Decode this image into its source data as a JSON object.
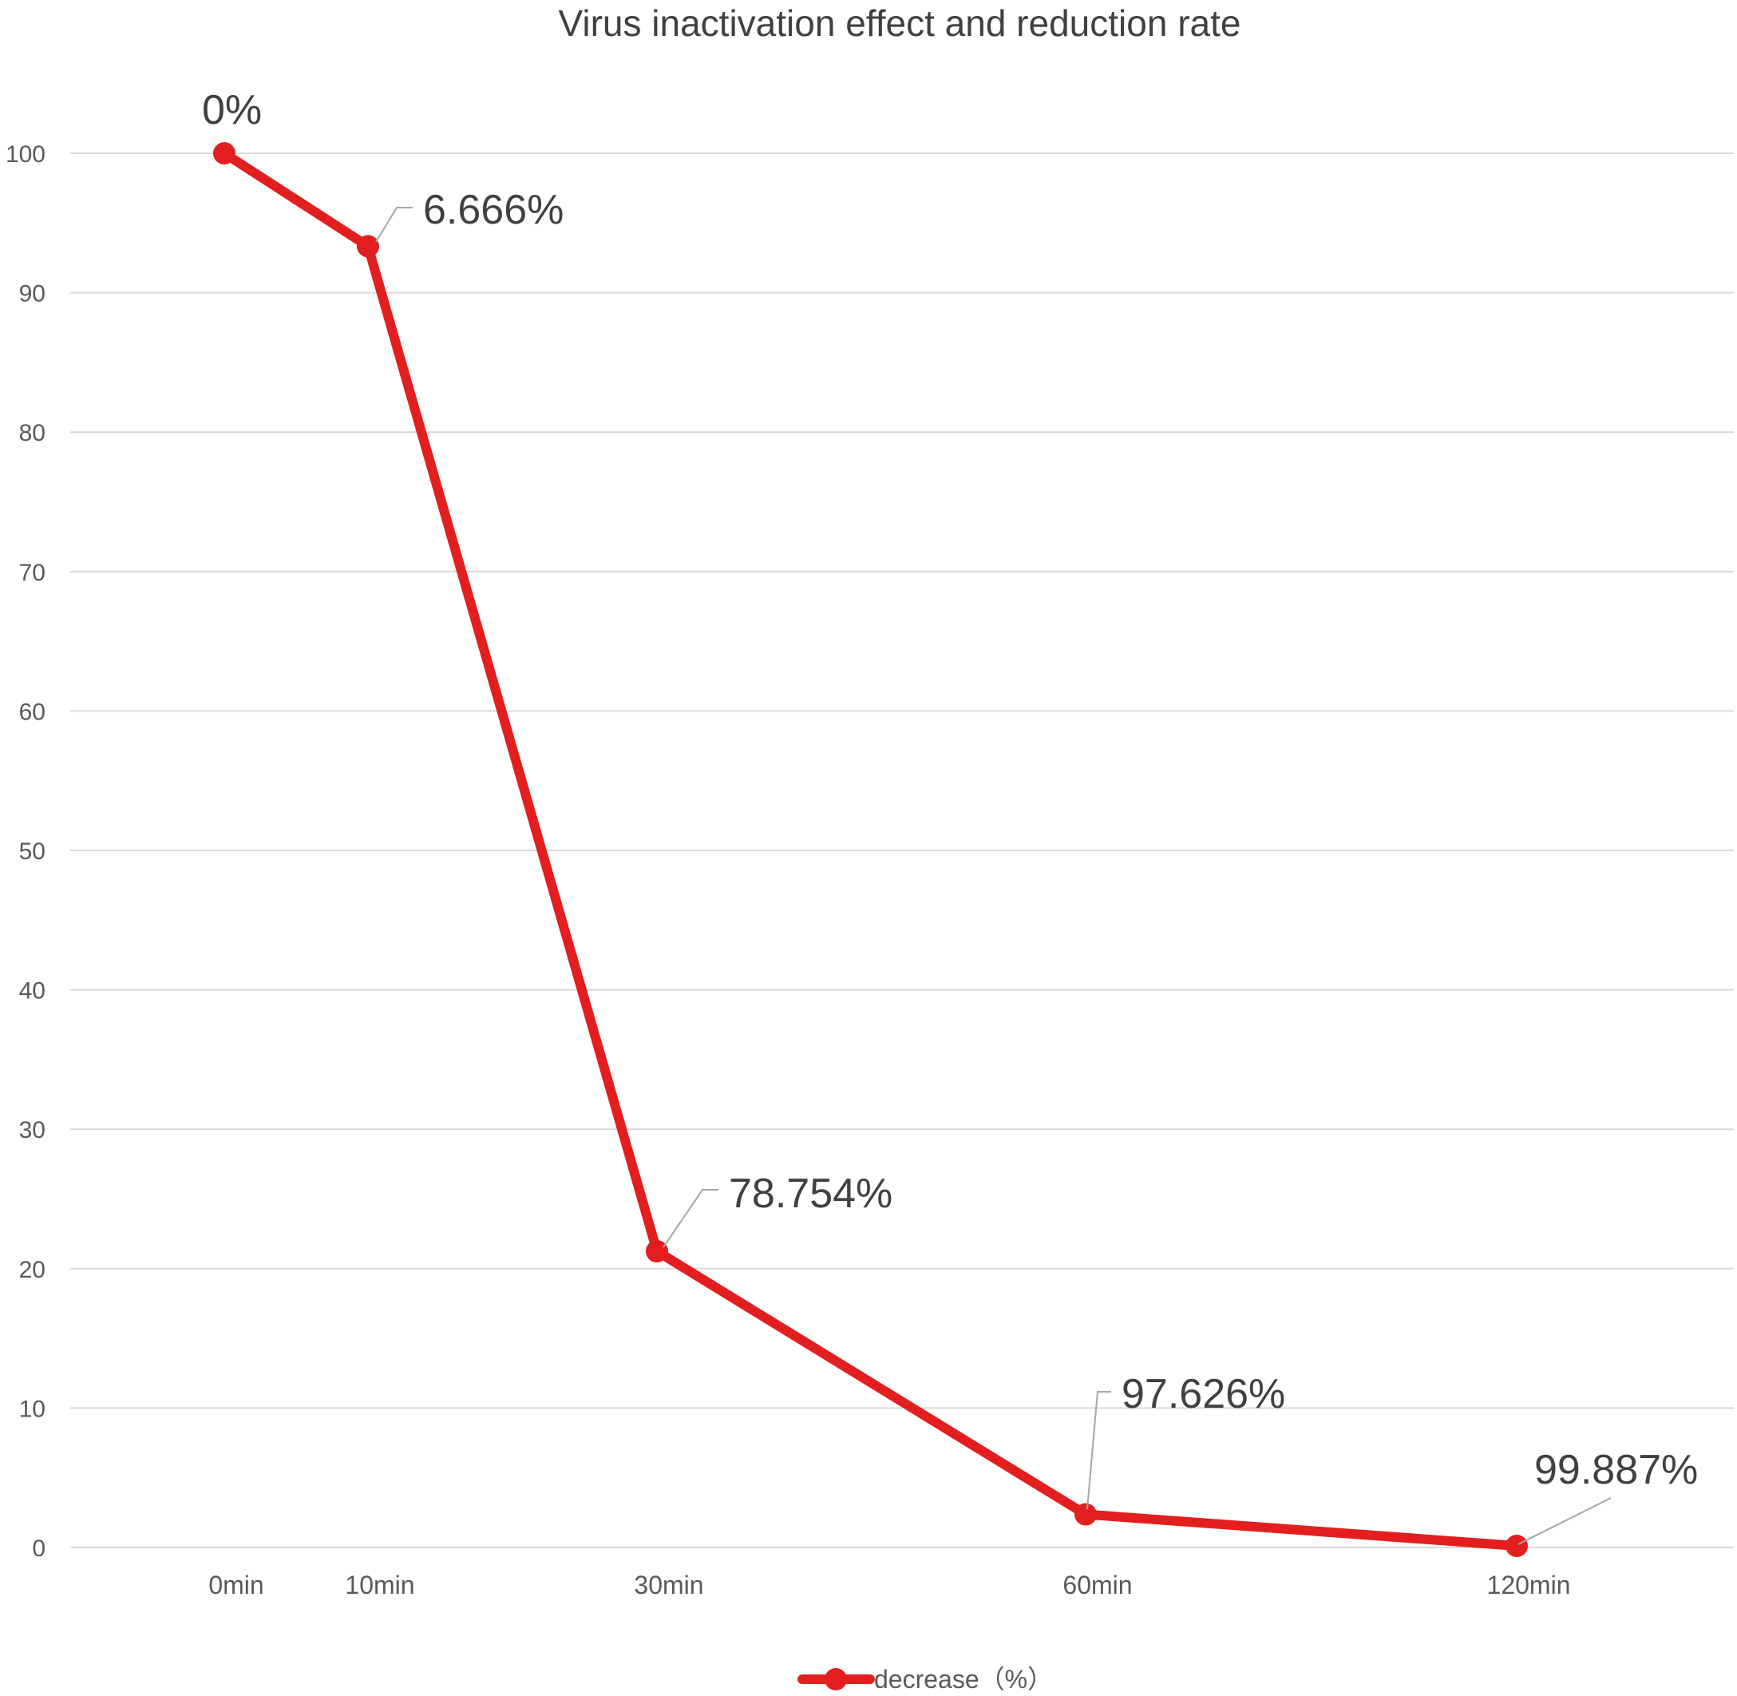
{
  "chart_data": {
    "type": "line",
    "title": "Virus inactivation effect and reduction rate",
    "categories": [
      "0min",
      "10min",
      "30min",
      "60min",
      "120min"
    ],
    "x": [
      0,
      10,
      30,
      60,
      120
    ],
    "series": [
      {
        "name": "decrease（%）",
        "values": [
          100,
          93.334,
          21.246,
          2.374,
          0.113
        ],
        "labels": [
          "0%",
          "6.666%",
          "78.754%",
          "97.626%",
          "99.887%"
        ],
        "color": "#e31e1e"
      }
    ],
    "yticks": [
      0,
      10,
      20,
      30,
      40,
      50,
      60,
      70,
      80,
      90,
      100
    ],
    "ylim": [
      0,
      100
    ],
    "xlabel": "",
    "ylabel": "",
    "grid": true,
    "legend": "bottom-center"
  }
}
